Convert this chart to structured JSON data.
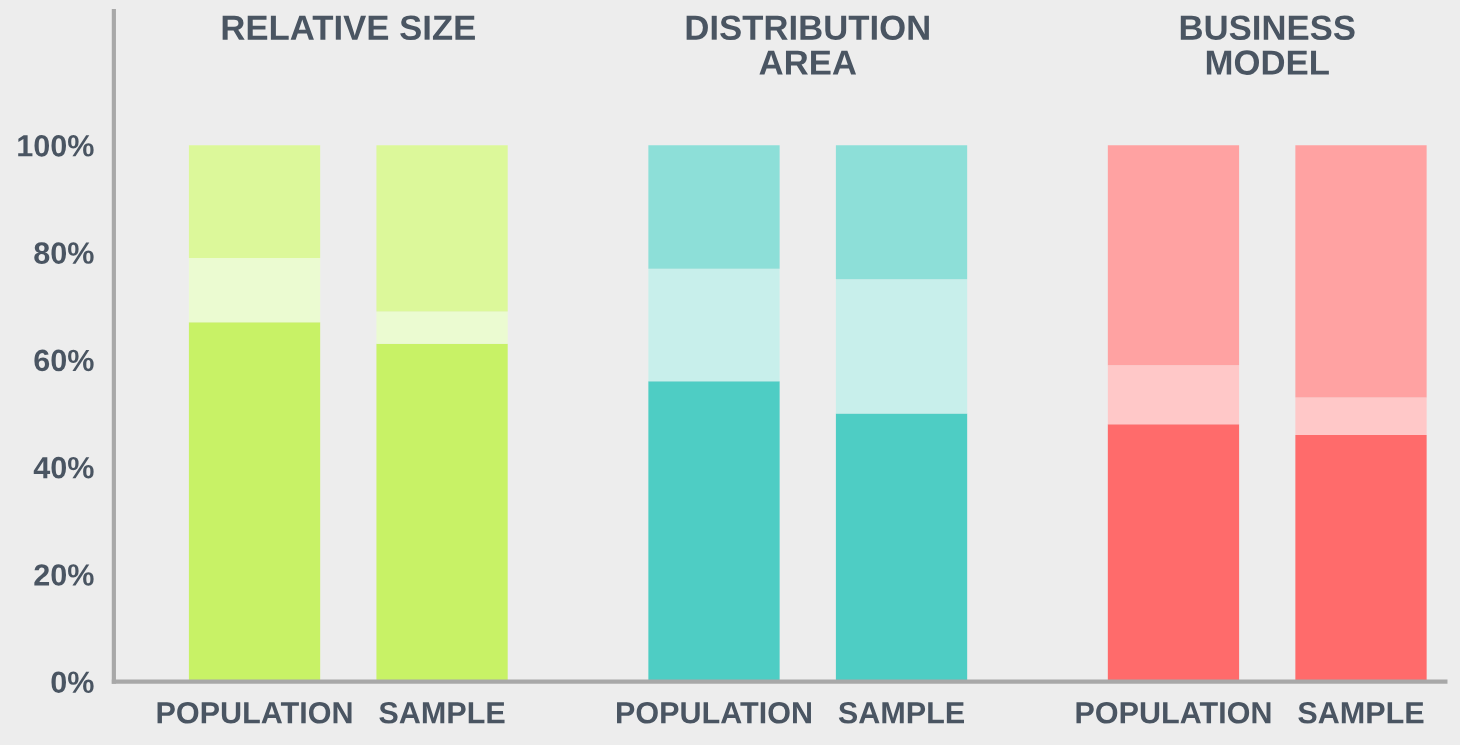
{
  "chart_data": {
    "type": "bar",
    "stacked": true,
    "categories": [
      "POPULATION",
      "SAMPLE",
      "POPULATION",
      "SAMPLE",
      "POPULATION",
      "SAMPLE"
    ],
    "annotations": [
      "RELATIVE SIZE",
      "DISTRIBUTION\nAREA",
      "BUSINESS\nMODEL"
    ],
    "series": [
      {
        "values": [
          67,
          63,
          56,
          50,
          48,
          46
        ],
        "colors": [
          "#c8f266",
          "#c8f266",
          "#4ecdc4",
          "#4ecdc4",
          "#ff6b6b",
          "#ff6b6b"
        ]
      },
      {
        "values": [
          12,
          6,
          21,
          25,
          11,
          7
        ],
        "colors": [
          "#ebfbd1",
          "#ebfbd1",
          "#c8efeb",
          "#c8efeb",
          "#ffc8c8",
          "#ffc8c8"
        ]
      },
      {
        "values": [
          21,
          31,
          23,
          25,
          41,
          47
        ],
        "colors": [
          "#dcf89a",
          "#dcf89a",
          "#8ddfd8",
          "#8ddfd8",
          "#ffa2a2",
          "#ffa2a2"
        ]
      }
    ],
    "ylim": [
      0,
      125
    ],
    "yticks": [
      {
        "value": 0,
        "label": "0%"
      },
      {
        "value": 20,
        "label": "20%"
      },
      {
        "value": 40,
        "label": "40%"
      },
      {
        "value": 60,
        "label": "60%"
      },
      {
        "value": 80,
        "label": "80%"
      },
      {
        "value": 100,
        "label": "100%"
      }
    ],
    "grid": false,
    "legend": false
  }
}
